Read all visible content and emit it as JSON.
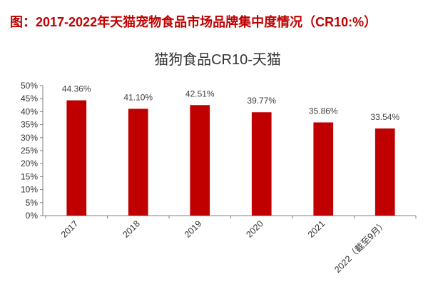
{
  "header": {
    "title": "图：2017-2022年天猫宠物食品市场品牌集中度情况（CR10:%）"
  },
  "colors": {
    "title": "#c00000",
    "bar": "#c00000",
    "axis": "#7f7f7f"
  },
  "chart_data": {
    "type": "bar",
    "title": "猫狗食品CR10-天猫",
    "xlabel": "",
    "ylabel": "",
    "categories": [
      "2017",
      "2018",
      "2019",
      "2020",
      "2021",
      "2022（截至9月）"
    ],
    "values": [
      44.36,
      41.1,
      42.51,
      39.77,
      35.86,
      33.54
    ],
    "data_labels": [
      "44.36%",
      "41.10%",
      "42.51%",
      "39.77%",
      "35.86%",
      "33.54%"
    ],
    "ylim": [
      0,
      50
    ],
    "yticks": [
      0,
      5,
      10,
      15,
      20,
      25,
      30,
      35,
      40,
      45,
      50
    ],
    "ytick_labels": [
      "0%",
      "5%",
      "10%",
      "15%",
      "20%",
      "25%",
      "30%",
      "35%",
      "40%",
      "45%",
      "50%"
    ],
    "grid": false
  }
}
